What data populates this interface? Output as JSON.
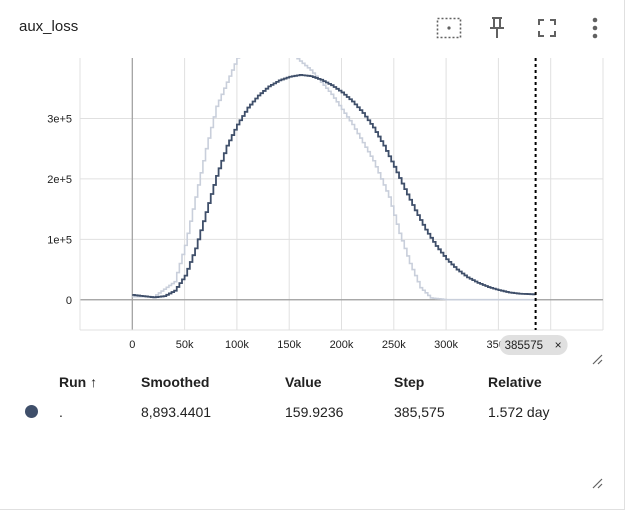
{
  "header": {
    "title": "aux_loss"
  },
  "toolbar": {
    "icons": [
      "fit-domain-icon",
      "pin-icon",
      "fullscreen-icon",
      "more-vert-icon"
    ]
  },
  "chart_data": {
    "type": "line",
    "xlabel": "",
    "ylabel": "",
    "xlim": [
      -50000,
      450000
    ],
    "ylim": [
      -50000,
      400000
    ],
    "x_ticks": [
      "0",
      "50k",
      "100k",
      "150k",
      "200k",
      "250k",
      "300k",
      "350k"
    ],
    "y_ticks": [
      "0",
      "1e+5",
      "2e+5",
      "3e+5"
    ],
    "grid": true,
    "colors": {
      "smoothed": "#3f4f6a",
      "raw": "#c9cfdb",
      "axis": "#9e9e9e",
      "grid": "#e0e0e0"
    },
    "series": [
      {
        "role": "raw",
        "x": [
          0,
          20000,
          40000,
          50000,
          60000,
          70000,
          80000,
          90000,
          100000,
          110000,
          130000,
          150000,
          170000,
          190000,
          210000,
          230000,
          245000,
          255000,
          265000,
          275000,
          285000,
          300000,
          330000,
          385575
        ],
        "y": [
          5000,
          5000,
          30000,
          90000,
          170000,
          250000,
          320000,
          360000,
          400000,
          410000,
          420000,
          410000,
          380000,
          340000,
          290000,
          230000,
          170000,
          110000,
          60000,
          20000,
          3000,
          200,
          160,
          160
        ]
      },
      {
        "role": "smoothed",
        "x": [
          0,
          10000,
          20000,
          30000,
          40000,
          50000,
          60000,
          70000,
          80000,
          90000,
          100000,
          110000,
          120000,
          130000,
          140000,
          150000,
          160000,
          170000,
          180000,
          190000,
          200000,
          210000,
          220000,
          230000,
          240000,
          250000,
          260000,
          270000,
          280000,
          290000,
          300000,
          310000,
          320000,
          330000,
          340000,
          350000,
          360000,
          370000,
          385575
        ],
        "y": [
          8000,
          6000,
          4000,
          6000,
          15000,
          40000,
          85000,
          145000,
          205000,
          255000,
          290000,
          318000,
          338000,
          353000,
          363000,
          369000,
          372000,
          370000,
          364000,
          355000,
          343000,
          328000,
          309000,
          285000,
          255000,
          220000,
          183000,
          148000,
          116000,
          89000,
          67000,
          50000,
          37000,
          28000,
          21000,
          16000,
          12000,
          10000,
          8893
        ]
      }
    ],
    "cursor": {
      "step": 385575,
      "label": "385575"
    }
  },
  "table": {
    "columns": [
      "Run ↑",
      "Smoothed",
      "Value",
      "Step",
      "Relative"
    ],
    "rows": [
      {
        "run": ".",
        "color": "#3f4f6a",
        "smoothed": "8,893.4401",
        "value": "159.9236",
        "step": "385,575",
        "relative": "1.572 day"
      }
    ]
  }
}
